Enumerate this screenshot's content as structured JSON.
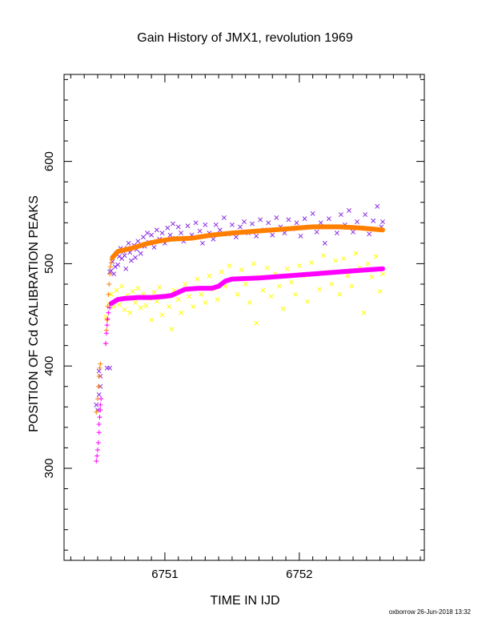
{
  "chart_data": {
    "type": "scatter",
    "title": "Gain History of JMX1, revolution 1969",
    "xlabel": "TIME IN IJD",
    "ylabel": "POSITION OF Cd CALIBRATION PEAKS",
    "xlim": [
      6750.25,
      6752.93
    ],
    "ylim": [
      210,
      685
    ],
    "xticks": [
      6751,
      6752
    ],
    "yticks": [
      300,
      400,
      500,
      600
    ],
    "grid": false,
    "footer": "oxborrow 26-Jun-2018 13:32",
    "series": [
      {
        "marker": "x",
        "color": "#8a2be2",
        "points": [
          [
            6750.49,
            362
          ],
          [
            6750.5,
            357
          ],
          [
            6750.51,
            372
          ],
          [
            6750.51,
            395
          ],
          [
            6750.52,
            390
          ],
          [
            6750.52,
            380
          ],
          [
            6750.57,
            398
          ],
          [
            6750.59,
            398
          ],
          [
            6750.59,
            492
          ],
          [
            6750.6,
            493
          ],
          [
            6750.61,
            502
          ],
          [
            6750.62,
            490
          ],
          [
            6750.63,
            497
          ],
          [
            6750.64,
            510
          ],
          [
            6750.65,
            499
          ],
          [
            6750.66,
            507
          ],
          [
            6750.67,
            515
          ],
          [
            6750.68,
            505
          ],
          [
            6750.69,
            512
          ],
          [
            6750.7,
            508
          ],
          [
            6750.71,
            495
          ],
          [
            6750.72,
            515
          ],
          [
            6750.73,
            520
          ],
          [
            6750.74,
            511
          ],
          [
            6750.75,
            503
          ],
          [
            6750.77,
            518
          ],
          [
            6750.78,
            506
          ],
          [
            6750.79,
            514
          ],
          [
            6750.8,
            522
          ],
          [
            6750.82,
            510
          ],
          [
            6750.84,
            526
          ],
          [
            6750.85,
            517
          ],
          [
            6750.87,
            530
          ],
          [
            6750.88,
            521
          ],
          [
            6750.9,
            528
          ],
          [
            6750.92,
            516
          ],
          [
            6750.94,
            533
          ],
          [
            6750.96,
            524
          ],
          [
            6750.98,
            530
          ],
          [
            6751.0,
            520
          ],
          [
            6751.02,
            535
          ],
          [
            6751.04,
            528
          ],
          [
            6751.06,
            539
          ],
          [
            6751.08,
            525
          ],
          [
            6751.1,
            536
          ],
          [
            6751.12,
            530
          ],
          [
            6751.14,
            522
          ],
          [
            6751.17,
            537
          ],
          [
            6751.2,
            528
          ],
          [
            6751.23,
            540
          ],
          [
            6751.26,
            532
          ],
          [
            6751.28,
            520
          ],
          [
            6751.3,
            538
          ],
          [
            6751.33,
            530
          ],
          [
            6751.36,
            524
          ],
          [
            6751.38,
            538
          ],
          [
            6751.41,
            533
          ],
          [
            6751.44,
            545
          ],
          [
            6751.47,
            529
          ],
          [
            6751.5,
            538
          ],
          [
            6751.53,
            526
          ],
          [
            6751.56,
            536
          ],
          [
            6751.59,
            541
          ],
          [
            6751.62,
            530
          ],
          [
            6751.65,
            539
          ],
          [
            6751.68,
            527
          ],
          [
            6751.71,
            543
          ],
          [
            6751.74,
            533
          ],
          [
            6751.77,
            540
          ],
          [
            6751.8,
            528
          ],
          [
            6751.83,
            545
          ],
          [
            6751.86,
            536
          ],
          [
            6751.89,
            530
          ],
          [
            6751.92,
            543
          ],
          [
            6751.95,
            534
          ],
          [
            6751.98,
            540
          ],
          [
            6752.01,
            527
          ],
          [
            6752.04,
            544
          ],
          [
            6752.07,
            536
          ],
          [
            6752.1,
            549
          ],
          [
            6752.13,
            531
          ],
          [
            6752.16,
            540
          ],
          [
            6752.19,
            520
          ],
          [
            6752.22,
            544
          ],
          [
            6752.25,
            536
          ],
          [
            6752.28,
            530
          ],
          [
            6752.31,
            548
          ],
          [
            6752.34,
            538
          ],
          [
            6752.37,
            552
          ],
          [
            6752.4,
            531
          ],
          [
            6752.43,
            541
          ],
          [
            6752.46,
            535
          ],
          [
            6752.49,
            548
          ],
          [
            6752.52,
            529
          ],
          [
            6752.55,
            542
          ],
          [
            6752.58,
            556
          ],
          [
            6752.61,
            536
          ],
          [
            6752.62,
            541
          ]
        ]
      },
      {
        "marker": "x",
        "color": "#ffff00",
        "points": [
          [
            6750.56,
            448
          ],
          [
            6750.58,
            461
          ],
          [
            6750.6,
            470
          ],
          [
            6750.62,
            458
          ],
          [
            6750.64,
            474
          ],
          [
            6750.66,
            460
          ],
          [
            6750.68,
            478
          ],
          [
            6750.7,
            455
          ],
          [
            6750.72,
            469
          ],
          [
            6750.74,
            452
          ],
          [
            6750.76,
            473
          ],
          [
            6750.78,
            462
          ],
          [
            6750.8,
            476
          ],
          [
            6750.82,
            457
          ],
          [
            6750.84,
            470
          ],
          [
            6750.86,
            459
          ],
          [
            6750.88,
            466
          ],
          [
            6750.9,
            445
          ],
          [
            6750.92,
            472
          ],
          [
            6750.94,
            463
          ],
          [
            6750.96,
            477
          ],
          [
            6750.98,
            450
          ],
          [
            6751.0,
            468
          ],
          [
            6751.03,
            458
          ],
          [
            6751.05,
            436
          ],
          [
            6751.07,
            474
          ],
          [
            6751.1,
            465
          ],
          [
            6751.12,
            452
          ],
          [
            6751.15,
            480
          ],
          [
            6751.18,
            468
          ],
          [
            6751.21,
            458
          ],
          [
            6751.24,
            485
          ],
          [
            6751.27,
            470
          ],
          [
            6751.3,
            462
          ],
          [
            6751.33,
            488
          ],
          [
            6751.36,
            475
          ],
          [
            6751.39,
            465
          ],
          [
            6751.42,
            492
          ],
          [
            6751.45,
            478
          ],
          [
            6751.48,
            498
          ],
          [
            6751.51,
            485
          ],
          [
            6751.54,
            470
          ],
          [
            6751.57,
            494
          ],
          [
            6751.6,
            480
          ],
          [
            6751.63,
            462
          ],
          [
            6751.66,
            500
          ],
          [
            6751.68,
            442
          ],
          [
            6751.7,
            487
          ],
          [
            6751.73,
            474
          ],
          [
            6751.76,
            496
          ],
          [
            6751.79,
            468
          ],
          [
            6751.82,
            490
          ],
          [
            6751.85,
            478
          ],
          [
            6751.88,
            456
          ],
          [
            6751.91,
            495
          ],
          [
            6751.94,
            482
          ],
          [
            6751.97,
            470
          ],
          [
            6752.0,
            498
          ],
          [
            6752.03,
            488
          ],
          [
            6752.06,
            463
          ],
          [
            6752.09,
            501
          ],
          [
            6752.12,
            490
          ],
          [
            6752.15,
            475
          ],
          [
            6752.18,
            508
          ],
          [
            6752.21,
            492
          ],
          [
            6752.24,
            480
          ],
          [
            6752.27,
            503
          ],
          [
            6752.3,
            470
          ],
          [
            6752.33,
            505
          ],
          [
            6752.36,
            488
          ],
          [
            6752.39,
            478
          ],
          [
            6752.42,
            510
          ],
          [
            6752.45,
            496
          ],
          [
            6752.48,
            452
          ],
          [
            6752.51,
            500
          ],
          [
            6752.54,
            487
          ],
          [
            6752.57,
            507
          ],
          [
            6752.6,
            473
          ],
          [
            6752.62,
            490
          ]
        ]
      },
      {
        "marker": "+",
        "color": "#ff7f00",
        "points": [
          [
            6750.49,
            355
          ],
          [
            6750.5,
            368
          ],
          [
            6750.505,
            380
          ],
          [
            6750.51,
            390
          ],
          [
            6750.515,
            398
          ],
          [
            6750.52,
            402
          ],
          [
            6750.56,
            422
          ],
          [
            6750.565,
            435
          ],
          [
            6750.57,
            445
          ],
          [
            6750.575,
            458
          ],
          [
            6750.58,
            470
          ],
          [
            6750.585,
            480
          ],
          [
            6750.59,
            490
          ],
          [
            6750.595,
            497
          ],
          [
            6750.6,
            501
          ],
          [
            6750.605,
            504
          ],
          [
            6750.61,
            506
          ]
        ],
        "trend": [
          [
            6750.61,
            506
          ],
          [
            6750.65,
            512
          ],
          [
            6750.75,
            515
          ],
          [
            6750.85,
            519
          ],
          [
            6750.95,
            522
          ],
          [
            6751.05,
            524
          ],
          [
            6751.2,
            525
          ],
          [
            6751.35,
            528
          ],
          [
            6751.5,
            530
          ],
          [
            6751.7,
            532
          ],
          [
            6751.9,
            534
          ],
          [
            6752.1,
            536
          ],
          [
            6752.3,
            536
          ],
          [
            6752.45,
            535
          ],
          [
            6752.62,
            533
          ]
        ]
      },
      {
        "marker": "+",
        "color": "#ff00ff",
        "points": [
          [
            6750.49,
            307
          ],
          [
            6750.495,
            312
          ],
          [
            6750.5,
            318
          ],
          [
            6750.505,
            325
          ],
          [
            6750.51,
            335
          ],
          [
            6750.51,
            343
          ],
          [
            6750.515,
            350
          ],
          [
            6750.52,
            357
          ],
          [
            6750.52,
            362
          ],
          [
            6750.525,
            368
          ],
          [
            6750.56,
            422
          ],
          [
            6750.565,
            432
          ],
          [
            6750.57,
            440
          ],
          [
            6750.575,
            446
          ],
          [
            6750.58,
            452
          ],
          [
            6750.59,
            457
          ],
          [
            6750.6,
            461
          ]
        ],
        "trend": [
          [
            6750.6,
            461
          ],
          [
            6750.65,
            465
          ],
          [
            6750.7,
            466
          ],
          [
            6750.8,
            467
          ],
          [
            6750.9,
            467
          ],
          [
            6751.0,
            468
          ],
          [
            6751.05,
            469
          ],
          [
            6751.1,
            472
          ],
          [
            6751.15,
            475
          ],
          [
            6751.25,
            476
          ],
          [
            6751.35,
            476
          ],
          [
            6751.4,
            478
          ],
          [
            6751.45,
            483
          ],
          [
            6751.5,
            485
          ],
          [
            6751.7,
            486
          ],
          [
            6751.9,
            488
          ],
          [
            6752.1,
            490
          ],
          [
            6752.3,
            492
          ],
          [
            6752.5,
            494
          ],
          [
            6752.62,
            495
          ]
        ]
      }
    ]
  }
}
